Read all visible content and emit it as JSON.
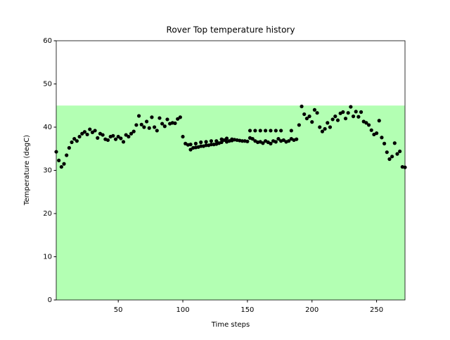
{
  "chart_data": {
    "type": "scatter",
    "title": "Rover Top temperature history",
    "xlabel": "Time steps",
    "ylabel": "Temperature (degC)",
    "xlim": [
      2,
      272
    ],
    "ylim": [
      0,
      60
    ],
    "xticks": [
      50,
      100,
      150,
      200,
      250
    ],
    "yticks": [
      0,
      10,
      20,
      30,
      40,
      50,
      60
    ],
    "band": {
      "ylim": [
        0,
        45
      ],
      "color": "#b3ffb3"
    },
    "series": [
      {
        "color": "#000000",
        "x": [
          2,
          4,
          6,
          8,
          10,
          12,
          14,
          16,
          18,
          20,
          22,
          24,
          26,
          28,
          30,
          32,
          34,
          36,
          38,
          40,
          42,
          44,
          46,
          48,
          50,
          52,
          54,
          56,
          58,
          60,
          62,
          64,
          66,
          68,
          70,
          72,
          74,
          76,
          78,
          80,
          82,
          84,
          86,
          88,
          90,
          92,
          94,
          96,
          98,
          100,
          102,
          104,
          106,
          108,
          110,
          112,
          114,
          116,
          118,
          120,
          122,
          124,
          126,
          128,
          130,
          132,
          134,
          136,
          138,
          140,
          142,
          144,
          146,
          148,
          150,
          152,
          154,
          156,
          158,
          160,
          162,
          164,
          166,
          168,
          170,
          172,
          174,
          176,
          178,
          180,
          182,
          184,
          186,
          188,
          190,
          192,
          194,
          196,
          198,
          200,
          202,
          204,
          206,
          208,
          210,
          212,
          214,
          216,
          218,
          220,
          222,
          224,
          226,
          228,
          230,
          232,
          234,
          236,
          238,
          240,
          242,
          244,
          246,
          248,
          250,
          252,
          254,
          256,
          258,
          260,
          262,
          264,
          266,
          268,
          270,
          272,
          106,
          110,
          114,
          118,
          122,
          126,
          130,
          134,
          138,
          152,
          156,
          160,
          164,
          168,
          172,
          176,
          184
        ],
        "values": [
          34.3,
          32.3,
          30.8,
          31.5,
          33.5,
          35.2,
          36.5,
          37.3,
          36.8,
          37.8,
          38.5,
          38.9,
          38.3,
          39.5,
          38.8,
          39.2,
          37.5,
          38.5,
          38.2,
          37.2,
          37.0,
          37.8,
          38.0,
          37.2,
          37.8,
          37.4,
          36.6,
          38.2,
          37.8,
          38.5,
          39.0,
          40.5,
          42.6,
          40.6,
          40.0,
          41.3,
          39.8,
          42.3,
          40.0,
          39.2,
          42.1,
          40.8,
          40.2,
          41.8,
          40.8,
          41.0,
          40.9,
          41.9,
          42.3,
          37.8,
          36.2,
          35.9,
          34.8,
          35.2,
          35.3,
          35.4,
          35.6,
          35.6,
          35.8,
          35.8,
          36.0,
          36.0,
          36.1,
          36.3,
          36.5,
          37.0,
          36.6,
          36.8,
          37.2,
          37.1,
          37.0,
          36.9,
          36.8,
          36.8,
          36.7,
          37.5,
          37.3,
          36.8,
          36.5,
          36.6,
          36.3,
          36.8,
          36.5,
          36.2,
          36.8,
          36.6,
          37.3,
          36.8,
          37.0,
          36.6,
          36.8,
          37.3,
          37.0,
          37.2,
          40.5,
          44.8,
          43.0,
          42.0,
          42.5,
          41.2,
          44.0,
          43.3,
          40.0,
          39.0,
          39.6,
          41.0,
          40.0,
          41.8,
          42.5,
          41.6,
          43.2,
          43.5,
          42.0,
          43.3,
          44.7,
          42.5,
          43.6,
          42.4,
          43.5,
          41.3,
          41.0,
          40.5,
          39.3,
          38.3,
          38.6,
          41.5,
          37.6,
          36.2,
          34.2,
          32.6,
          33.2,
          36.3,
          33.8,
          34.4,
          30.8,
          30.7,
          36.0,
          36.2,
          36.5,
          36.6,
          36.8,
          36.8,
          37.2,
          37.4,
          36.9,
          39.2,
          39.2,
          39.2,
          39.2,
          39.2,
          39.2,
          39.2,
          39.2
        ]
      }
    ]
  }
}
